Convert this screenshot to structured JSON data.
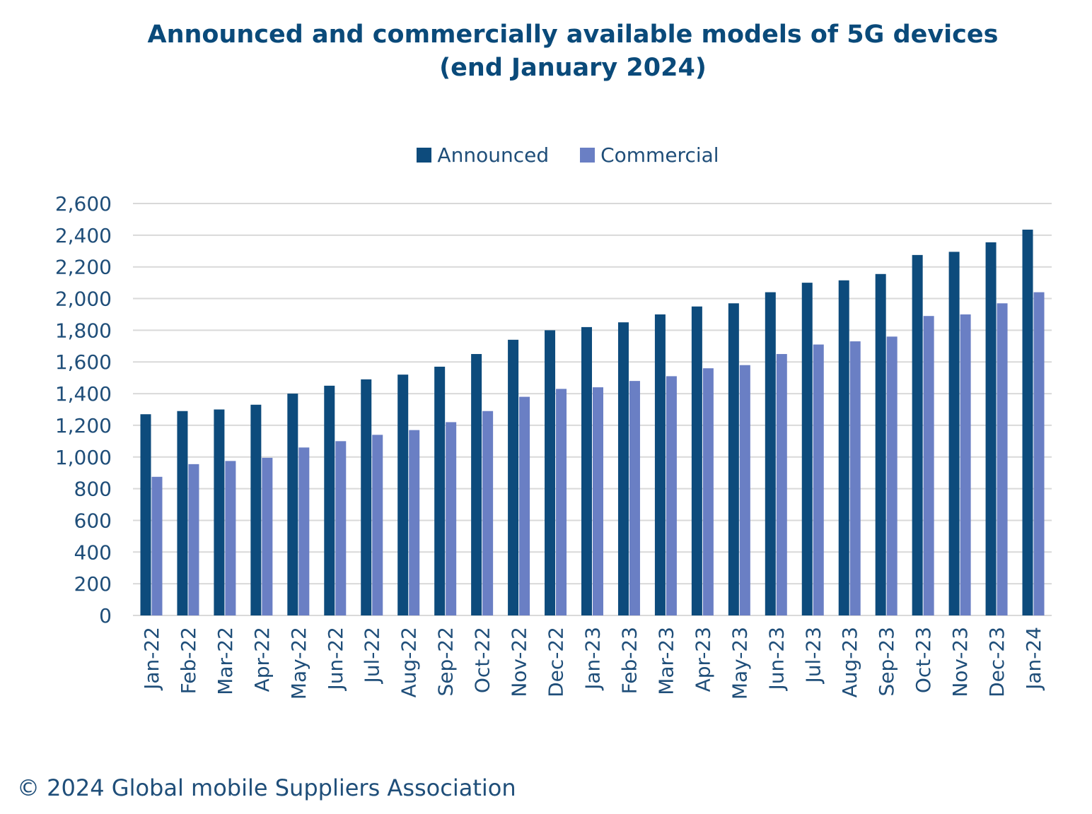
{
  "chart_data": {
    "type": "bar",
    "title": "Announced and commercially available models of 5G devices",
    "subtitle": "(end January 2024)",
    "xlabel": "",
    "ylabel": "",
    "ylim": [
      0,
      2600
    ],
    "yticks": [
      "0",
      "200",
      "400",
      "600",
      "800",
      "1,000",
      "1,200",
      "1,400",
      "1,600",
      "1,800",
      "2,000",
      "2,200",
      "2,400",
      "2,600"
    ],
    "grid": true,
    "legend_position": "top-center",
    "categories": [
      "Jan-22",
      "Feb-22",
      "Mar-22",
      "Apr-22",
      "May-22",
      "Jun-22",
      "Jul-22",
      "Aug-22",
      "Sep-22",
      "Oct-22",
      "Nov-22",
      "Dec-22",
      "Jan-23",
      "Feb-23",
      "Mar-23",
      "Apr-23",
      "May-23",
      "Jun-23",
      "Jul-23",
      "Aug-23",
      "Sep-23",
      "Oct-23",
      "Nov-23",
      "Dec-23",
      "Jan-24"
    ],
    "series": [
      {
        "name": "Announced",
        "color": "#0d4b7c",
        "values": [
          1270,
          1290,
          1300,
          1330,
          1400,
          1450,
          1490,
          1520,
          1570,
          1650,
          1740,
          1800,
          1820,
          1850,
          1900,
          1950,
          1970,
          2040,
          2100,
          2115,
          2155,
          2275,
          2295,
          2355,
          2435
        ]
      },
      {
        "name": "Commercial",
        "color": "#6a7fc4",
        "values": [
          875,
          955,
          975,
          995,
          1060,
          1100,
          1140,
          1170,
          1220,
          1290,
          1380,
          1430,
          1440,
          1480,
          1510,
          1560,
          1580,
          1650,
          1710,
          1730,
          1760,
          1890,
          1900,
          1970,
          2040
        ]
      }
    ]
  },
  "footer": "© 2024 Global mobile Suppliers Association"
}
